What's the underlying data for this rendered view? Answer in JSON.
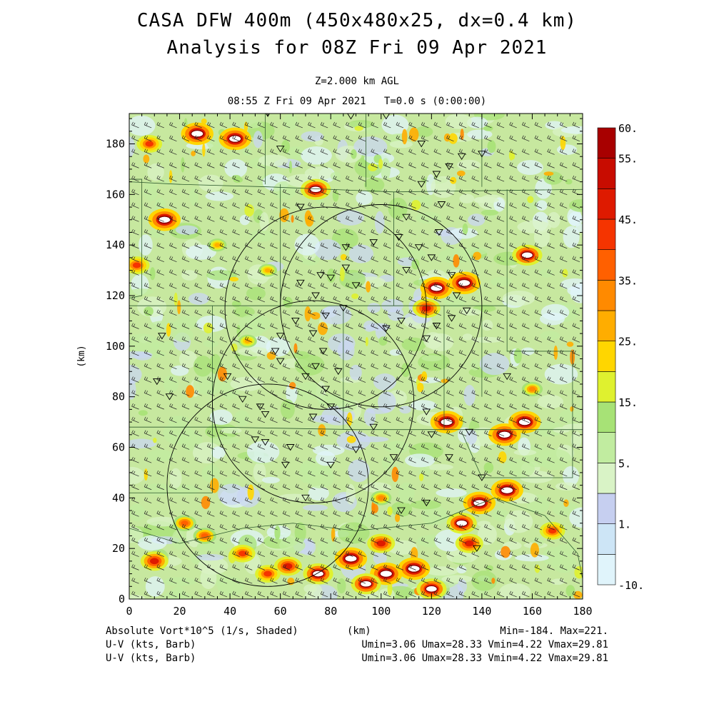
{
  "header": {
    "title_line1": "CASA DFW 400m (450x480x25, dx=0.4 km)",
    "title_line2": "Analysis for 08Z Fri 09 Apr 2021",
    "level": "Z=2.000 km AGL",
    "time": "08:55 Z Fri 09 Apr 2021   T=0.0 s (0:00:00)"
  },
  "footer": {
    "field_label": "Absolute Vort*10^5 (1/s, Shaded)",
    "axis_unit": "(km)",
    "minmax": "Min=-184. Max=221.",
    "barb1_label": "U-V (kts, Barb)",
    "barb1_stats": "Umin=3.06 Umax=28.33 Vmin=4.22 Vmax=29.81",
    "barb2_label": "U-V (kts, Barb)",
    "barb2_stats": "Umin=3.06 Umax=28.33 Vmin=4.22 Vmax=29.81"
  },
  "chart_data": {
    "type": "heatmap",
    "field": "Absolute Vort*10^5 (1/s, Shaded)",
    "xlabel": "(km)",
    "ylabel": "(km)",
    "xlim": [
      0,
      180
    ],
    "ylim": [
      0,
      192
    ],
    "x_ticks": [
      "0",
      "20",
      "40",
      "60",
      "80",
      "100",
      "120",
      "140",
      "160",
      "180"
    ],
    "y_ticks": [
      "0",
      "20",
      "40",
      "60",
      "80",
      "100",
      "120",
      "140",
      "160",
      "180"
    ],
    "colorbar": {
      "levels": [
        -10,
        0,
        1,
        2.5,
        5,
        10,
        15,
        20,
        25,
        30,
        35,
        40,
        45,
        50,
        55,
        60
      ],
      "labels": [
        "60.",
        "55.",
        "45.",
        "35.",
        "25.",
        "15.",
        "5.",
        "1.",
        "-10."
      ],
      "colors": [
        "#e0f4fb",
        "#cde5f6",
        "#c6cff0",
        "#d9f3c6",
        "#c1eca0",
        "#a7e276",
        "#dff12f",
        "#ffd600",
        "#ffad00",
        "#ff8a00",
        "#ff6000",
        "#f53400",
        "#de1a00",
        "#c80c00",
        "#a80000"
      ]
    },
    "min": -184,
    "max": 221,
    "wind_barbs": {
      "units": "kts",
      "umin": 3.06,
      "umax": 28.33,
      "vmin": 4.22,
      "vmax": 29.81
    },
    "radar_sites_km": [
      {
        "x": 78,
        "y": 115,
        "range_km": 40
      },
      {
        "x": 100,
        "y": 116,
        "range_km": 40
      },
      {
        "x": 73,
        "y": 78,
        "range_km": 40
      },
      {
        "x": 55,
        "y": 45,
        "range_km": 40
      }
    ],
    "hotspots_km": [
      {
        "x": 14,
        "y": 150,
        "v": 60
      },
      {
        "x": 27,
        "y": 184,
        "v": 60
      },
      {
        "x": 42,
        "y": 182,
        "v": 60
      },
      {
        "x": 8,
        "y": 180,
        "v": 45
      },
      {
        "x": 3,
        "y": 132,
        "v": 45
      },
      {
        "x": 74,
        "y": 162,
        "v": 55
      },
      {
        "x": 122,
        "y": 123,
        "v": 60
      },
      {
        "x": 133,
        "y": 125,
        "v": 60
      },
      {
        "x": 118,
        "y": 115,
        "v": 50
      },
      {
        "x": 158,
        "y": 136,
        "v": 55
      },
      {
        "x": 149,
        "y": 65,
        "v": 60
      },
      {
        "x": 126,
        "y": 70,
        "v": 60
      },
      {
        "x": 157,
        "y": 70,
        "v": 60
      },
      {
        "x": 150,
        "y": 43,
        "v": 60
      },
      {
        "x": 139,
        "y": 38,
        "v": 60
      },
      {
        "x": 132,
        "y": 30,
        "v": 55
      },
      {
        "x": 135,
        "y": 22,
        "v": 50
      },
      {
        "x": 168,
        "y": 27,
        "v": 45
      },
      {
        "x": 100,
        "y": 22,
        "v": 50
      },
      {
        "x": 88,
        "y": 16,
        "v": 60
      },
      {
        "x": 102,
        "y": 10,
        "v": 60
      },
      {
        "x": 94,
        "y": 6,
        "v": 55
      },
      {
        "x": 113,
        "y": 12,
        "v": 60
      },
      {
        "x": 120,
        "y": 4,
        "v": 55
      },
      {
        "x": 75,
        "y": 10,
        "v": 55
      },
      {
        "x": 63,
        "y": 13,
        "v": 50
      },
      {
        "x": 55,
        "y": 10,
        "v": 45
      },
      {
        "x": 45,
        "y": 18,
        "v": 45
      },
      {
        "x": 30,
        "y": 25,
        "v": 40
      },
      {
        "x": 10,
        "y": 15,
        "v": 50
      },
      {
        "x": 22,
        "y": 30,
        "v": 40
      },
      {
        "x": 160,
        "y": 83,
        "v": 35
      },
      {
        "x": 47,
        "y": 102,
        "v": 30
      },
      {
        "x": 35,
        "y": 140,
        "v": 30
      },
      {
        "x": 55,
        "y": 130,
        "v": 30
      },
      {
        "x": 100,
        "y": 40,
        "v": 35
      }
    ]
  }
}
